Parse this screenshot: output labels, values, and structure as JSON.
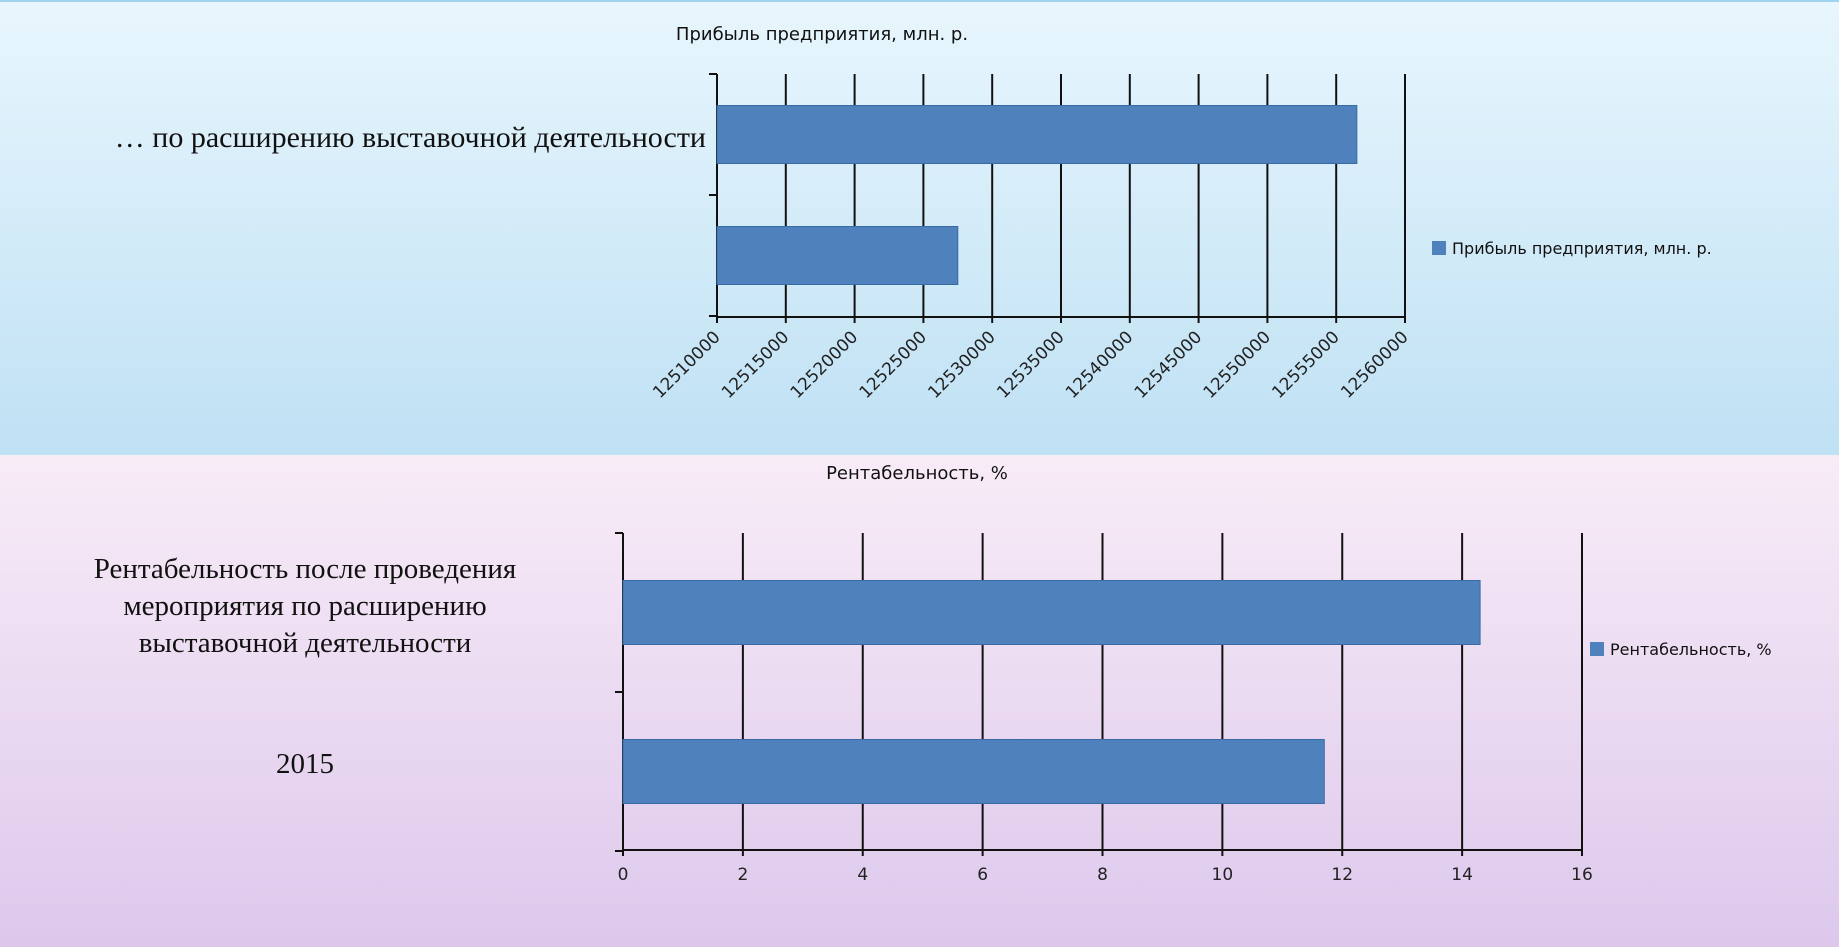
{
  "chart_data": [
    {
      "type": "bar",
      "orientation": "horizontal",
      "title": "Прибыль предприятия, млн. р.",
      "categories": [
        "… по расширению выставочной деятельности",
        ""
      ],
      "series": [
        {
          "name": "Прибыль предприятия, млн. р.",
          "values": [
            12556500,
            12527500
          ]
        }
      ],
      "xlim": [
        12510000,
        12560000
      ],
      "xticks": [
        12510000,
        12515000,
        12520000,
        12525000,
        12530000,
        12535000,
        12540000,
        12545000,
        12550000,
        12555000,
        12560000
      ],
      "tick_labels": [
        "12510000",
        "12515000",
        "12520000",
        "12525000",
        "12530000",
        "12535000",
        "12540000",
        "12545000",
        "12550000",
        "12555000",
        "12560000"
      ],
      "color": "#4f81bd",
      "grid": true,
      "legend": "right"
    },
    {
      "type": "bar",
      "orientation": "horizontal",
      "title": "Рентабельность, %",
      "categories": [
        "Рентабельность после проведения мероприятия по расширению выставочной деятельности",
        "2015"
      ],
      "category_lines": [
        [
          "Рентабельность после проведения",
          "мероприятия по расширению",
          "выставочной деятельности"
        ],
        [
          "2015"
        ]
      ],
      "series": [
        {
          "name": "Рентабельность, %",
          "values": [
            14.3,
            11.7
          ]
        }
      ],
      "xlim": [
        0,
        16
      ],
      "xticks": [
        0,
        2,
        4,
        6,
        8,
        10,
        12,
        14,
        16
      ],
      "tick_labels": [
        "0",
        "2",
        "4",
        "6",
        "8",
        "10",
        "12",
        "14",
        "16"
      ],
      "color": "#4f81bd",
      "grid": true,
      "legend": "right"
    }
  ]
}
